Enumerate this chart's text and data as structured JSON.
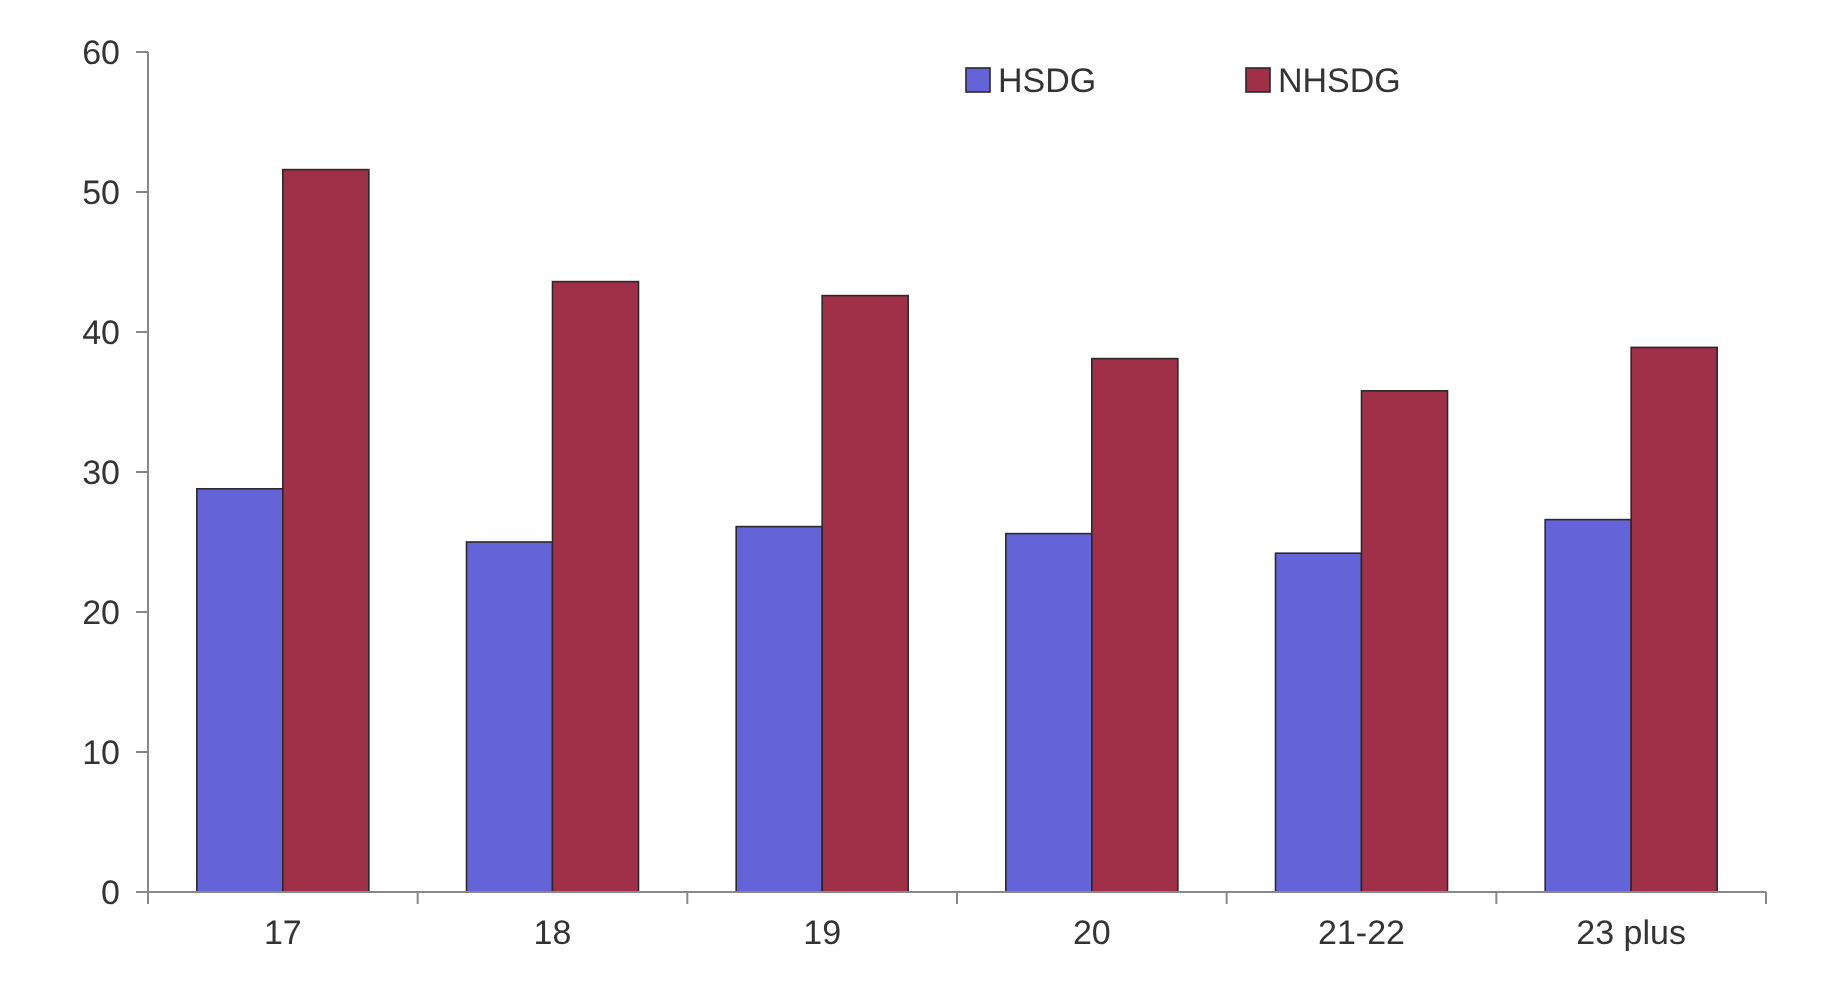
{
  "chart_data": {
    "type": "bar",
    "categories": [
      "17",
      "18",
      "19",
      "20",
      "21-22",
      "23 plus"
    ],
    "series": [
      {
        "name": "HSDG",
        "color": "#6464d8",
        "values": [
          28.8,
          25,
          26.1,
          25.6,
          24.2,
          26.6
        ]
      },
      {
        "name": "NHSDG",
        "color": "#a03048",
        "values": [
          51.6,
          43.6,
          42.6,
          38.1,
          35.8,
          38.9
        ]
      }
    ],
    "ylim": [
      0,
      60
    ],
    "yticks": [
      0,
      10,
      20,
      30,
      40,
      50,
      60
    ],
    "grid": false,
    "legend": "top right"
  }
}
